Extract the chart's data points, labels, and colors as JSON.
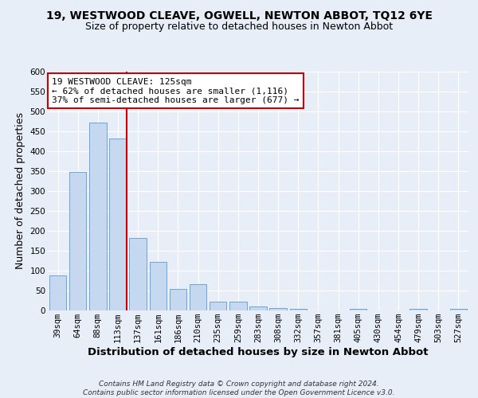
{
  "title": "19, WESTWOOD CLEAVE, OGWELL, NEWTON ABBOT, TQ12 6YE",
  "subtitle": "Size of property relative to detached houses in Newton Abbot",
  "xlabel": "Distribution of detached houses by size in Newton Abbot",
  "ylabel": "Number of detached properties",
  "categories": [
    "39sqm",
    "64sqm",
    "88sqm",
    "113sqm",
    "137sqm",
    "161sqm",
    "186sqm",
    "210sqm",
    "235sqm",
    "259sqm",
    "283sqm",
    "308sqm",
    "332sqm",
    "357sqm",
    "381sqm",
    "405sqm",
    "430sqm",
    "454sqm",
    "479sqm",
    "503sqm",
    "527sqm"
  ],
  "values": [
    88,
    348,
    473,
    432,
    183,
    122,
    54,
    67,
    22,
    22,
    11,
    6,
    5,
    1,
    1,
    4,
    0,
    0,
    4,
    0,
    4
  ],
  "bar_color": "#c5d8f0",
  "bar_edge_color": "#5b9bd5",
  "vline_x_index": 3,
  "vline_color": "#cc0000",
  "annotation_text": "19 WESTWOOD CLEAVE: 125sqm\n← 62% of detached houses are smaller (1,116)\n37% of semi-detached houses are larger (677) →",
  "annotation_box_color": "#ffffff",
  "annotation_box_edge": "#cc0000",
  "ylim": [
    0,
    600
  ],
  "yticks": [
    0,
    50,
    100,
    150,
    200,
    250,
    300,
    350,
    400,
    450,
    500,
    550,
    600
  ],
  "footer": "Contains HM Land Registry data © Crown copyright and database right 2024.\nContains public sector information licensed under the Open Government Licence v3.0.",
  "background_color": "#e8eef8",
  "grid_color": "#ffffff",
  "title_fontsize": 10,
  "subtitle_fontsize": 9,
  "axis_label_fontsize": 9,
  "tick_fontsize": 7.5,
  "annotation_fontsize": 8
}
